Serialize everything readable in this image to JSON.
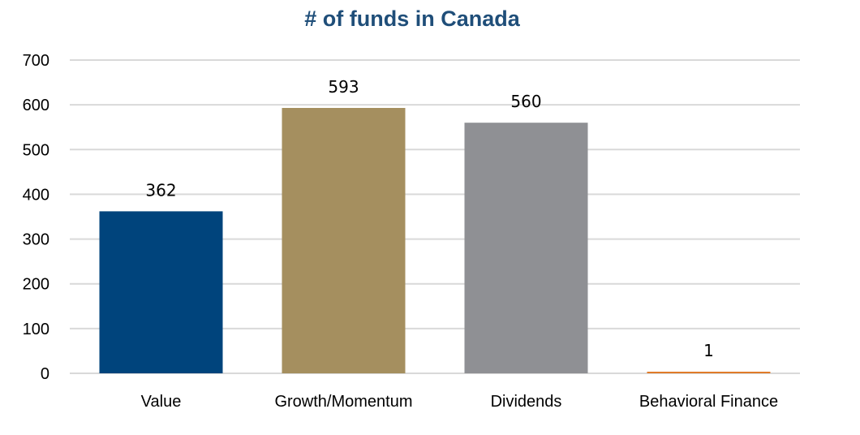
{
  "chart_data": {
    "type": "bar",
    "title": "# of funds in Canada",
    "categories": [
      "Value",
      "Growth/Momentum",
      "Dividends",
      "Behavioral Finance"
    ],
    "values": [
      362,
      593,
      560,
      1
    ],
    "data_labels": [
      "362",
      "593",
      "560",
      "1"
    ],
    "colors": [
      "#00447c",
      "#a58f5f",
      "#8f9094",
      "#e07b2a"
    ],
    "title_color": "#1f4e79",
    "xlabel": "",
    "ylabel": "",
    "ylim": [
      0,
      700
    ],
    "yticks": [
      0,
      100,
      200,
      300,
      400,
      500,
      600,
      700
    ],
    "ytick_labels": [
      "0",
      "100",
      "200",
      "300",
      "400",
      "500",
      "600",
      "700"
    ],
    "grid": true,
    "legend": "none"
  }
}
